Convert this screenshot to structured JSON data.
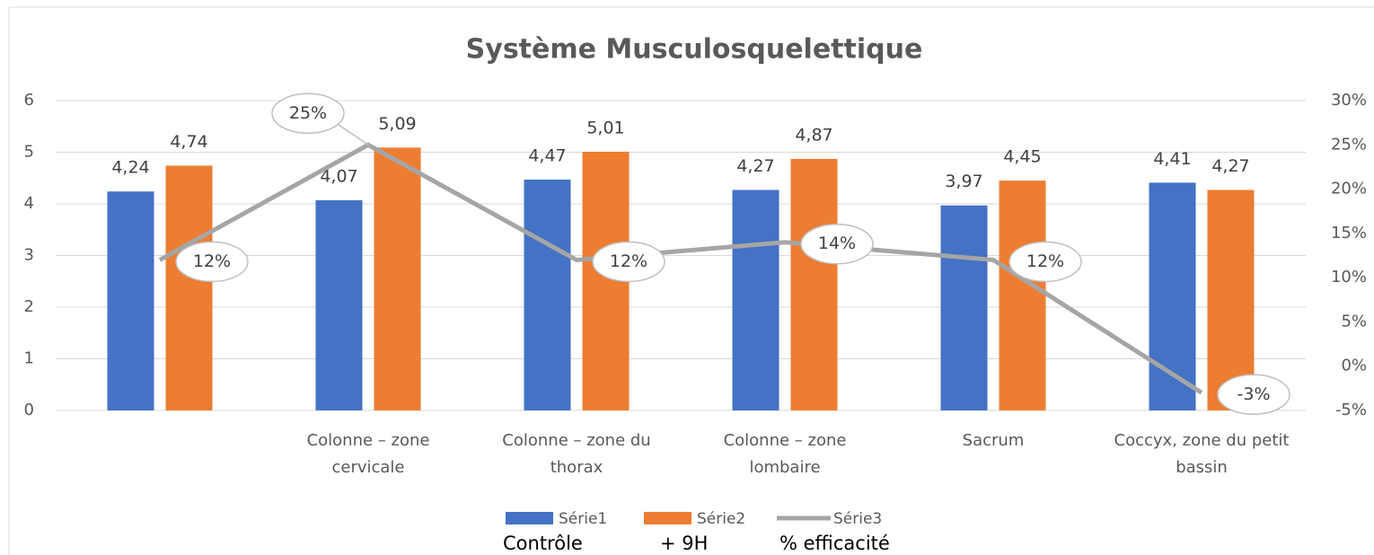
{
  "chart_data": {
    "type": "bar-line",
    "title": "Système Musculosquelettique",
    "categories": [
      null,
      "Colonne  – zone cervicale",
      "Colonne  – zone du thorax",
      "Colonne  – zone lombaire",
      "Sacrum",
      "Coccyx, zone du petit bassin"
    ],
    "series": [
      {
        "name": "Série1",
        "color": "#4472c4",
        "type": "bar",
        "values": [
          4.24,
          4.07,
          4.47,
          4.27,
          3.97,
          4.41
        ],
        "value_labels": [
          "4,24",
          "4,07",
          "4,47",
          "4,27",
          "3,97",
          "4,41"
        ]
      },
      {
        "name": "Série2",
        "color": "#ed7d31",
        "type": "bar",
        "values": [
          4.74,
          5.09,
          5.01,
          4.87,
          4.45,
          4.27
        ],
        "value_labels": [
          "4,74",
          "5,09",
          "5,01",
          "4,87",
          "4,45",
          "4,27"
        ]
      },
      {
        "name": "Série3",
        "color": "#a5a5a5",
        "type": "line",
        "axis": "y2",
        "values": [
          12,
          25,
          12,
          14,
          12,
          -3
        ],
        "value_labels": [
          "12%",
          "25%",
          "12%",
          "14%",
          "12%",
          "-3%"
        ]
      }
    ],
    "ylim": [
      0,
      6
    ],
    "yticks": [
      0,
      1,
      2,
      3,
      4,
      5,
      6
    ],
    "y2lim": [
      -5,
      30
    ],
    "y2ticks": [
      {
        "value": -5,
        "label": "-5%"
      },
      {
        "value": 0,
        "label": "0%"
      },
      {
        "value": 5,
        "label": "5%"
      },
      {
        "value": 10,
        "label": "10%"
      },
      {
        "value": 15,
        "label": "15%"
      },
      {
        "value": 20,
        "label": "20%"
      },
      {
        "value": 25,
        "label": "25%"
      },
      {
        "value": 30,
        "label": "30%"
      }
    ],
    "grid": true,
    "legend": "bottom",
    "annotations": [
      "Contrôle",
      "+ 9H",
      "% efficacité"
    ]
  }
}
